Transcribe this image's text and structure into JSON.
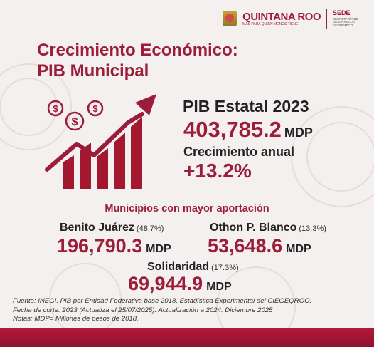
{
  "header": {
    "logo_main": "QUINTANA ROO",
    "logo_sub": "MÁS PARA QUIEN MENOS TIENE",
    "agency": "SEDE",
    "agency_sub": "SECRETARÍA DE DESARROLLO ECONÓMICO"
  },
  "title": {
    "line1": "Crecimiento Económico:",
    "line2": "PIB Municipal"
  },
  "state": {
    "label": "PIB Estatal 2023",
    "value": "403,785.2",
    "unit": "MDP",
    "growth_label": "Crecimiento anual",
    "growth_value": "+13.2%"
  },
  "municipalities": {
    "heading": "Municipios con mayor aportación",
    "items": [
      {
        "name": "Benito Juárez",
        "share": "(48.7%)",
        "value": "196,790.3",
        "unit": "MDP"
      },
      {
        "name": "Othon P. Blanco",
        "share": "(13.3%)",
        "value": "53,648.6",
        "unit": "MDP"
      },
      {
        "name": "Solidaridad",
        "share": "(17.3%)",
        "value": "69,944.9",
        "unit": "MDP"
      }
    ]
  },
  "notes": {
    "line1": "Fuente: INEGI. PIB por Entidad Federativa base 2018. Estadística Experimental del CIEGEQROO.",
    "line2": "Fecha de corte: 2023 (Actualiza el 25/07/2025). Actualización a 2024: Diciembre 2025",
    "line3": "Notas: MDP= Millones de pesos de 2018."
  },
  "colors": {
    "accent": "#9c1d3a",
    "background": "#f3f0ef",
    "footer": "#b4183a"
  },
  "icons": [
    "bar-chart-growth-icon",
    "dollar-coin-icon",
    "state-seal-icon"
  ]
}
